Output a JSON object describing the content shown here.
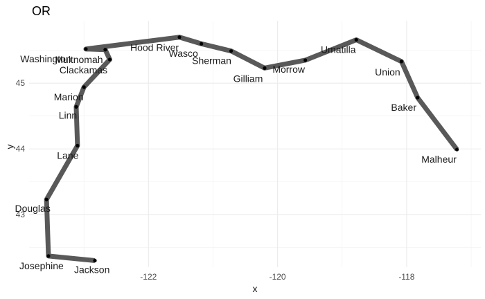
{
  "chart_data": {
    "type": "line",
    "title": "OR",
    "xlabel": "x",
    "ylabel": "y",
    "xlim": [
      -123.85,
      -116.85
    ],
    "ylim": [
      42.2,
      45.95
    ],
    "x_ticks": [
      -122,
      -120,
      -118
    ],
    "y_ticks": [
      43,
      44,
      45
    ],
    "x_tick_labels": [
      "-122",
      "-120",
      "-118"
    ],
    "y_tick_labels": [
      "43",
      "44",
      "45"
    ],
    "grid": true,
    "line_color": "#595959",
    "point_color": "#000000",
    "points": [
      {
        "label": "Jackson",
        "x": -122.83,
        "y": 42.3
      },
      {
        "label": "Josephine",
        "x": -123.55,
        "y": 42.37
      },
      {
        "label": "Douglas",
        "x": -123.58,
        "y": 43.23
      },
      {
        "label": "Lane",
        "x": -123.1,
        "y": 44.05
      },
      {
        "label": "Linn",
        "x": -123.12,
        "y": 44.64
      },
      {
        "label": "Marion",
        "x": -123.0,
        "y": 44.94
      },
      {
        "label": "Clackamas",
        "x": -122.6,
        "y": 45.36
      },
      {
        "label": "Multnomah",
        "x": -122.67,
        "y": 45.51
      },
      {
        "label": "Washington",
        "x": -122.97,
        "y": 45.52
      },
      {
        "label": "Hood River",
        "x": -121.52,
        "y": 45.7
      },
      {
        "label": "Wasco",
        "x": -121.18,
        "y": 45.6
      },
      {
        "label": "Sherman",
        "x": -120.72,
        "y": 45.49
      },
      {
        "label": "Gilliam",
        "x": -120.2,
        "y": 45.23
      },
      {
        "label": "Morrow",
        "x": -119.57,
        "y": 45.35
      },
      {
        "label": "Umatilla",
        "x": -118.78,
        "y": 45.66
      },
      {
        "label": "Union",
        "x": -118.08,
        "y": 45.33
      },
      {
        "label": "Baker",
        "x": -117.83,
        "y": 44.78
      },
      {
        "label": "Malheur",
        "x": -117.22,
        "y": 43.99
      }
    ]
  }
}
